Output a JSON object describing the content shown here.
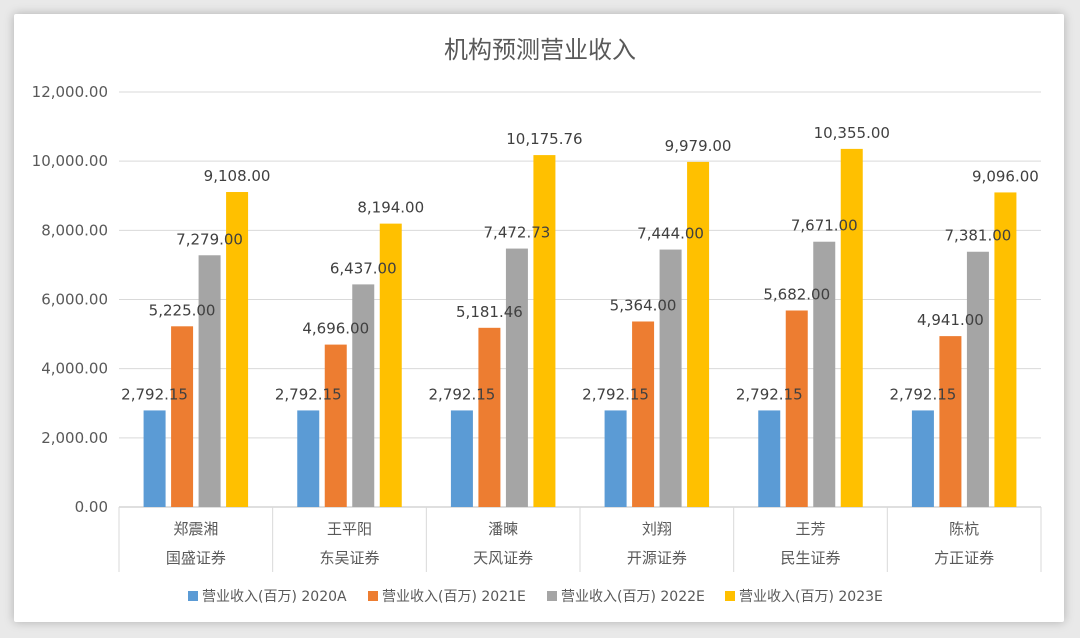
{
  "chart_data": {
    "type": "bar",
    "title": "机构预测营业收入",
    "xlabel": "",
    "ylabel": "",
    "ylim": [
      0,
      12000
    ],
    "yticks": [
      "0.00",
      "2,000.00",
      "4,000.00",
      "6,000.00",
      "8,000.00",
      "10,000.00",
      "12,000.00"
    ],
    "grid": true,
    "legend_position": "bottom",
    "categories": [
      {
        "analyst": "郑震湘",
        "broker": "国盛证券"
      },
      {
        "analyst": "王平阳",
        "broker": "东吴证券"
      },
      {
        "analyst": "潘暕",
        "broker": "天风证券"
      },
      {
        "analyst": "刘翔",
        "broker": "开源证券"
      },
      {
        "analyst": "王芳",
        "broker": "民生证券"
      },
      {
        "analyst": "陈杭",
        "broker": "方正证券"
      }
    ],
    "series": [
      {
        "name": "营业收入(百万) 2020A",
        "color": "#5b9bd5",
        "values": [
          2792.15,
          2792.15,
          2792.15,
          2792.15,
          2792.15,
          2792.15
        ],
        "labels": [
          "2,792.15",
          "2,792.15",
          "2,792.15",
          "2,792.15",
          "2,792.15",
          "2,792.15"
        ]
      },
      {
        "name": "营业收入(百万) 2021E",
        "color": "#ed7d31",
        "values": [
          5225.0,
          4696.0,
          5181.46,
          5364.0,
          5682.0,
          4941.0
        ],
        "labels": [
          "5,225.00",
          "4,696.00",
          "5,181.46",
          "5,364.00",
          "5,682.00",
          "4,941.00"
        ]
      },
      {
        "name": "营业收入(百万) 2022E",
        "color": "#a5a5a5",
        "values": [
          7279.0,
          6437.0,
          7472.73,
          7444.0,
          7671.0,
          7381.0
        ],
        "labels": [
          "7,279.00",
          "6,437.00",
          "7,472.73",
          "7,444.00",
          "7,671.00",
          "7,381.00"
        ]
      },
      {
        "name": "营业收入(百万) 2023E",
        "color": "#ffc000",
        "values": [
          9108.0,
          8194.0,
          10175.76,
          9979.0,
          10355.0,
          9096.0
        ],
        "labels": [
          "9,108.00",
          "8,194.00",
          "10,175.76",
          "9,979.00",
          "10,355.00",
          "9,096.00"
        ]
      }
    ]
  }
}
